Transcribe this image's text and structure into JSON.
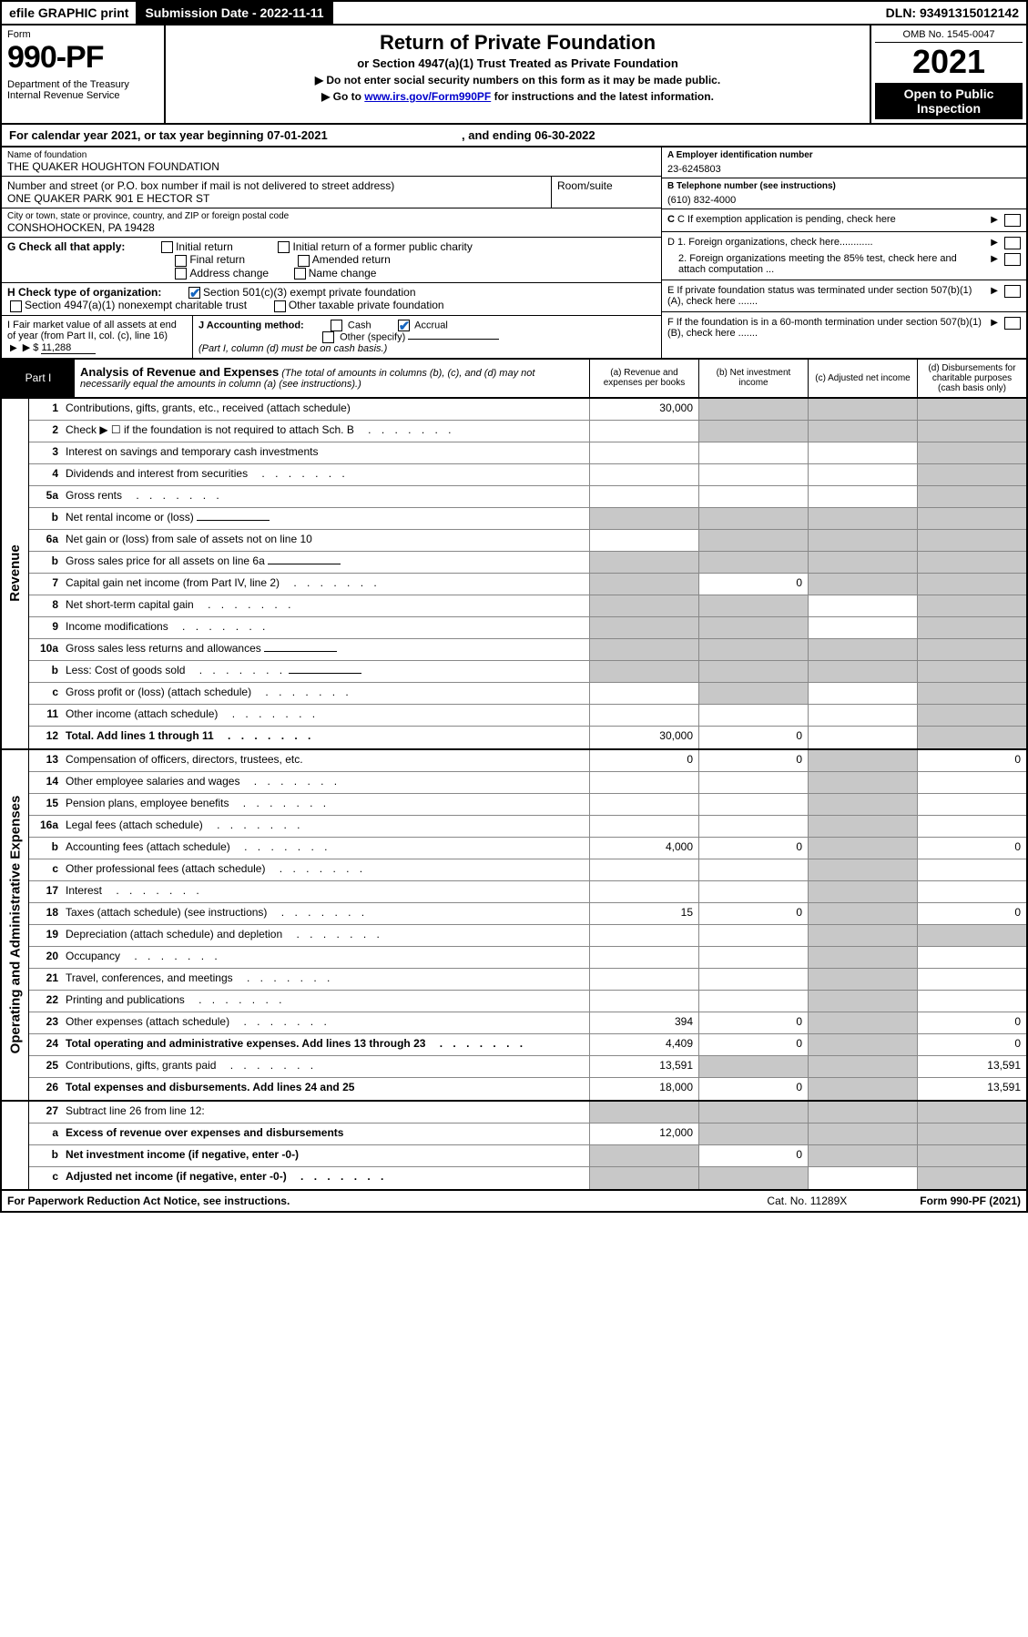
{
  "colors": {
    "black": "#000000",
    "white": "#ffffff",
    "gray_fill": "#c8c8c8",
    "link": "#0000cc",
    "check": "#1565c0"
  },
  "topbar": {
    "efile": "efile GRAPHIC print",
    "subdate_label": "Submission Date - 2022-11-11",
    "dln": "DLN: 93491315012142"
  },
  "header": {
    "form_label": "Form",
    "form_num": "990-PF",
    "dept": "Department of the Treasury\nInternal Revenue Service",
    "title": "Return of Private Foundation",
    "subtitle": "or Section 4947(a)(1) Trust Treated as Private Foundation",
    "note1": "▶ Do not enter social security numbers on this form as it may be made public.",
    "note2_pre": "▶ Go to ",
    "note2_link": "www.irs.gov/Form990PF",
    "note2_post": " for instructions and the latest information.",
    "omb": "OMB No. 1545-0047",
    "year": "2021",
    "open": "Open to Public Inspection"
  },
  "calrow": {
    "text_a": "For calendar year 2021, or tax year beginning 07-01-2021",
    "text_b": ", and ending 06-30-2022"
  },
  "entity": {
    "name_lbl": "Name of foundation",
    "name": "THE QUAKER HOUGHTON FOUNDATION",
    "addr_lbl": "Number and street (or P.O. box number if mail is not delivered to street address)",
    "addr": "ONE QUAKER PARK 901 E HECTOR ST",
    "room_lbl": "Room/suite",
    "city_lbl": "City or town, state or province, country, and ZIP or foreign postal code",
    "city": "CONSHOHOCKEN, PA  19428",
    "ein_lbl": "A Employer identification number",
    "ein": "23-6245803",
    "phone_lbl": "B Telephone number (see instructions)",
    "phone": "(610) 832-4000",
    "c_lbl": "C If exemption application is pending, check here",
    "d1": "D 1. Foreign organizations, check here............",
    "d2": "2. Foreign organizations meeting the 85% test, check here and attach computation ...",
    "e_lbl": "E  If private foundation status was terminated under section 507(b)(1)(A), check here .......",
    "f_lbl": "F  If the foundation is in a 60-month termination under section 507(b)(1)(B), check here ......."
  },
  "g": {
    "label": "G Check all that apply:",
    "opts": [
      "Initial return",
      "Final return",
      "Address change",
      "Initial return of a former public charity",
      "Amended return",
      "Name change"
    ]
  },
  "h": {
    "label": "H Check type of organization:",
    "opt1": "Section 501(c)(3) exempt private foundation",
    "opt2": "Section 4947(a)(1) nonexempt charitable trust",
    "opt3": "Other taxable private foundation"
  },
  "i": {
    "label": "I Fair market value of all assets at end of year (from Part II, col. (c), line 16)",
    "val_prefix": "▶ $",
    "val": "11,288"
  },
  "j": {
    "label": "J Accounting method:",
    "cash": "Cash",
    "accrual": "Accrual",
    "other": "Other (specify)",
    "note": "(Part I, column (d) must be on cash basis.)"
  },
  "part1": {
    "label": "Part I",
    "title": "Analysis of Revenue and Expenses",
    "note": "(The total of amounts in columns (b), (c), and (d) may not necessarily equal the amounts in column (a) (see instructions).)",
    "cols": {
      "a": "(a)  Revenue and expenses per books",
      "b": "(b)  Net investment income",
      "c": "(c)  Adjusted net income",
      "d": "(d)  Disbursements for charitable purposes (cash basis only)"
    }
  },
  "side_labels": {
    "revenue": "Revenue",
    "expenses": "Operating and Administrative Expenses"
  },
  "rows": [
    {
      "n": "1",
      "d": "Contributions, gifts, grants, etc., received (attach schedule)",
      "a": "30,000",
      "b": "g",
      "c": "g",
      "dd": "g"
    },
    {
      "n": "2",
      "d": "Check ▶ ☐ if the foundation is not required to attach Sch. B",
      "a": "",
      "b": "g",
      "c": "g",
      "dd": "g",
      "dots": true
    },
    {
      "n": "3",
      "d": "Interest on savings and temporary cash investments",
      "a": "",
      "b": "",
      "c": "",
      "dd": "g"
    },
    {
      "n": "4",
      "d": "Dividends and interest from securities",
      "a": "",
      "b": "",
      "c": "",
      "dd": "g",
      "dots": true
    },
    {
      "n": "5a",
      "d": "Gross rents",
      "a": "",
      "b": "",
      "c": "",
      "dd": "g",
      "dots": true
    },
    {
      "n": "b",
      "d": "Net rental income or (loss)",
      "a": "g",
      "b": "g",
      "c": "g",
      "dd": "g",
      "inline_blank": true
    },
    {
      "n": "6a",
      "d": "Net gain or (loss) from sale of assets not on line 10",
      "a": "",
      "b": "g",
      "c": "g",
      "dd": "g"
    },
    {
      "n": "b",
      "d": "Gross sales price for all assets on line 6a",
      "a": "g",
      "b": "g",
      "c": "g",
      "dd": "g",
      "inline_blank": true
    },
    {
      "n": "7",
      "d": "Capital gain net income (from Part IV, line 2)",
      "a": "g",
      "b": "0",
      "c": "g",
      "dd": "g",
      "dots": true
    },
    {
      "n": "8",
      "d": "Net short-term capital gain",
      "a": "g",
      "b": "g",
      "c": "",
      "dd": "g",
      "dots": true
    },
    {
      "n": "9",
      "d": "Income modifications",
      "a": "g",
      "b": "g",
      "c": "",
      "dd": "g",
      "dots": true
    },
    {
      "n": "10a",
      "d": "Gross sales less returns and allowances",
      "a": "g",
      "b": "g",
      "c": "g",
      "dd": "g",
      "inline_blank": true
    },
    {
      "n": "b",
      "d": "Less: Cost of goods sold",
      "a": "g",
      "b": "g",
      "c": "g",
      "dd": "g",
      "inline_blank": true,
      "dots": true
    },
    {
      "n": "c",
      "d": "Gross profit or (loss) (attach schedule)",
      "a": "",
      "b": "g",
      "c": "",
      "dd": "g",
      "dots": true
    },
    {
      "n": "11",
      "d": "Other income (attach schedule)",
      "a": "",
      "b": "",
      "c": "",
      "dd": "g",
      "dots": true
    },
    {
      "n": "12",
      "d": "Total. Add lines 1 through 11",
      "a": "30,000",
      "b": "0",
      "c": "",
      "dd": "g",
      "bold": true,
      "dots": true
    }
  ],
  "exp_rows": [
    {
      "n": "13",
      "d": "Compensation of officers, directors, trustees, etc.",
      "a": "0",
      "b": "0",
      "c": "g",
      "dd": "0"
    },
    {
      "n": "14",
      "d": "Other employee salaries and wages",
      "a": "",
      "b": "",
      "c": "g",
      "dd": "",
      "dots": true
    },
    {
      "n": "15",
      "d": "Pension plans, employee benefits",
      "a": "",
      "b": "",
      "c": "g",
      "dd": "",
      "dots": true
    },
    {
      "n": "16a",
      "d": "Legal fees (attach schedule)",
      "a": "",
      "b": "",
      "c": "g",
      "dd": "",
      "dots": true
    },
    {
      "n": "b",
      "d": "Accounting fees (attach schedule)",
      "a": "4,000",
      "b": "0",
      "c": "g",
      "dd": "0",
      "dots": true
    },
    {
      "n": "c",
      "d": "Other professional fees (attach schedule)",
      "a": "",
      "b": "",
      "c": "g",
      "dd": "",
      "dots": true
    },
    {
      "n": "17",
      "d": "Interest",
      "a": "",
      "b": "",
      "c": "g",
      "dd": "",
      "dots": true
    },
    {
      "n": "18",
      "d": "Taxes (attach schedule) (see instructions)",
      "a": "15",
      "b": "0",
      "c": "g",
      "dd": "0",
      "dots": true
    },
    {
      "n": "19",
      "d": "Depreciation (attach schedule) and depletion",
      "a": "",
      "b": "",
      "c": "g",
      "dd": "g",
      "dots": true
    },
    {
      "n": "20",
      "d": "Occupancy",
      "a": "",
      "b": "",
      "c": "g",
      "dd": "",
      "dots": true
    },
    {
      "n": "21",
      "d": "Travel, conferences, and meetings",
      "a": "",
      "b": "",
      "c": "g",
      "dd": "",
      "dots": true
    },
    {
      "n": "22",
      "d": "Printing and publications",
      "a": "",
      "b": "",
      "c": "g",
      "dd": "",
      "dots": true
    },
    {
      "n": "23",
      "d": "Other expenses (attach schedule)",
      "a": "394",
      "b": "0",
      "c": "g",
      "dd": "0",
      "dots": true
    },
    {
      "n": "24",
      "d": "Total operating and administrative expenses. Add lines 13 through 23",
      "a": "4,409",
      "b": "0",
      "c": "g",
      "dd": "0",
      "bold": true,
      "dots": true
    },
    {
      "n": "25",
      "d": "Contributions, gifts, grants paid",
      "a": "13,591",
      "b": "g",
      "c": "g",
      "dd": "13,591",
      "dots": true
    },
    {
      "n": "26",
      "d": "Total expenses and disbursements. Add lines 24 and 25",
      "a": "18,000",
      "b": "0",
      "c": "g",
      "dd": "13,591",
      "bold": true
    }
  ],
  "sum_rows": [
    {
      "n": "27",
      "d": "Subtract line 26 from line 12:",
      "a": "g",
      "b": "g",
      "c": "g",
      "dd": "g"
    },
    {
      "n": "a",
      "d": "Excess of revenue over expenses and disbursements",
      "a": "12,000",
      "b": "g",
      "c": "g",
      "dd": "g",
      "bold": true
    },
    {
      "n": "b",
      "d": "Net investment income (if negative, enter -0-)",
      "a": "g",
      "b": "0",
      "c": "g",
      "dd": "g",
      "bold": true
    },
    {
      "n": "c",
      "d": "Adjusted net income (if negative, enter -0-)",
      "a": "g",
      "b": "g",
      "c": "",
      "dd": "g",
      "bold": true,
      "dots": true
    }
  ],
  "footer": {
    "left": "For Paperwork Reduction Act Notice, see instructions.",
    "mid": "Cat. No. 11289X",
    "right": "Form 990-PF (2021)"
  }
}
